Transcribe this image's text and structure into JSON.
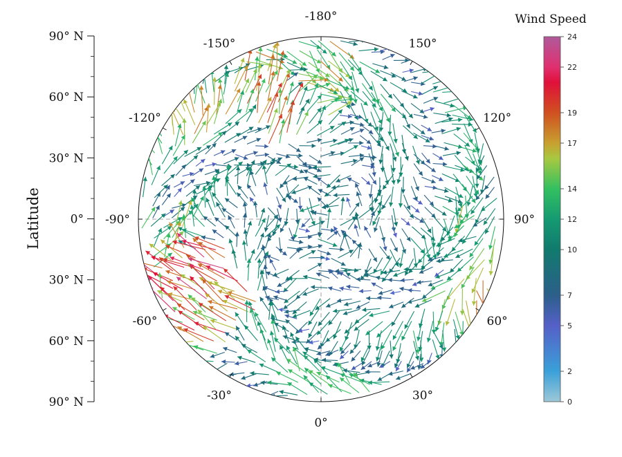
{
  "chart_data": {
    "type": "vector-field-polar",
    "title": "",
    "ylabel": "Latitude",
    "lat_ticks": [
      "90° N",
      "60° N",
      "30° N",
      "0°",
      "30° N",
      "60° N",
      "90° N"
    ],
    "lon_labels": [
      {
        "name": "lon-0",
        "text": "0°",
        "deg": 0
      },
      {
        "name": "lon-30e",
        "text": "30°",
        "deg": 30
      },
      {
        "name": "lon-60e",
        "text": "60°",
        "deg": 60
      },
      {
        "name": "lon-90e",
        "text": "90°",
        "deg": 90
      },
      {
        "name": "lon-120e",
        "text": "120°",
        "deg": 120
      },
      {
        "name": "lon-150e",
        "text": "150°",
        "deg": 150
      },
      {
        "name": "lon-180",
        "text": "-180°",
        "deg": 180
      },
      {
        "name": "lon-150w",
        "text": "-150°",
        "deg": -150
      },
      {
        "name": "lon-120w",
        "text": "-120°",
        "deg": -120
      },
      {
        "name": "lon-90w",
        "text": "-90°",
        "deg": -90
      },
      {
        "name": "lon-60w",
        "text": "-60°",
        "deg": -60
      },
      {
        "name": "lon-30w",
        "text": "-30°",
        "deg": -30
      }
    ],
    "colorbar": {
      "title": "Wind Speed",
      "min": 0,
      "max": 24,
      "ticks": [
        0,
        2,
        5,
        7,
        10,
        12,
        14,
        17,
        19,
        22,
        24
      ],
      "stops": [
        {
          "v": 0,
          "color": "#9ec8d8"
        },
        {
          "v": 2,
          "color": "#3aa0d8"
        },
        {
          "v": 5,
          "color": "#5560c8"
        },
        {
          "v": 7,
          "color": "#2c5f8a"
        },
        {
          "v": 10,
          "color": "#117a6e"
        },
        {
          "v": 12,
          "color": "#159a72"
        },
        {
          "v": 14,
          "color": "#33c060"
        },
        {
          "v": 16,
          "color": "#a8c840"
        },
        {
          "v": 17,
          "color": "#c8a030"
        },
        {
          "v": 19,
          "color": "#d05020"
        },
        {
          "v": 21,
          "color": "#e0103a"
        },
        {
          "v": 22,
          "color": "#e03070"
        },
        {
          "v": 24,
          "color": "#b05a9a"
        }
      ]
    },
    "field_seed": 20240611
  }
}
